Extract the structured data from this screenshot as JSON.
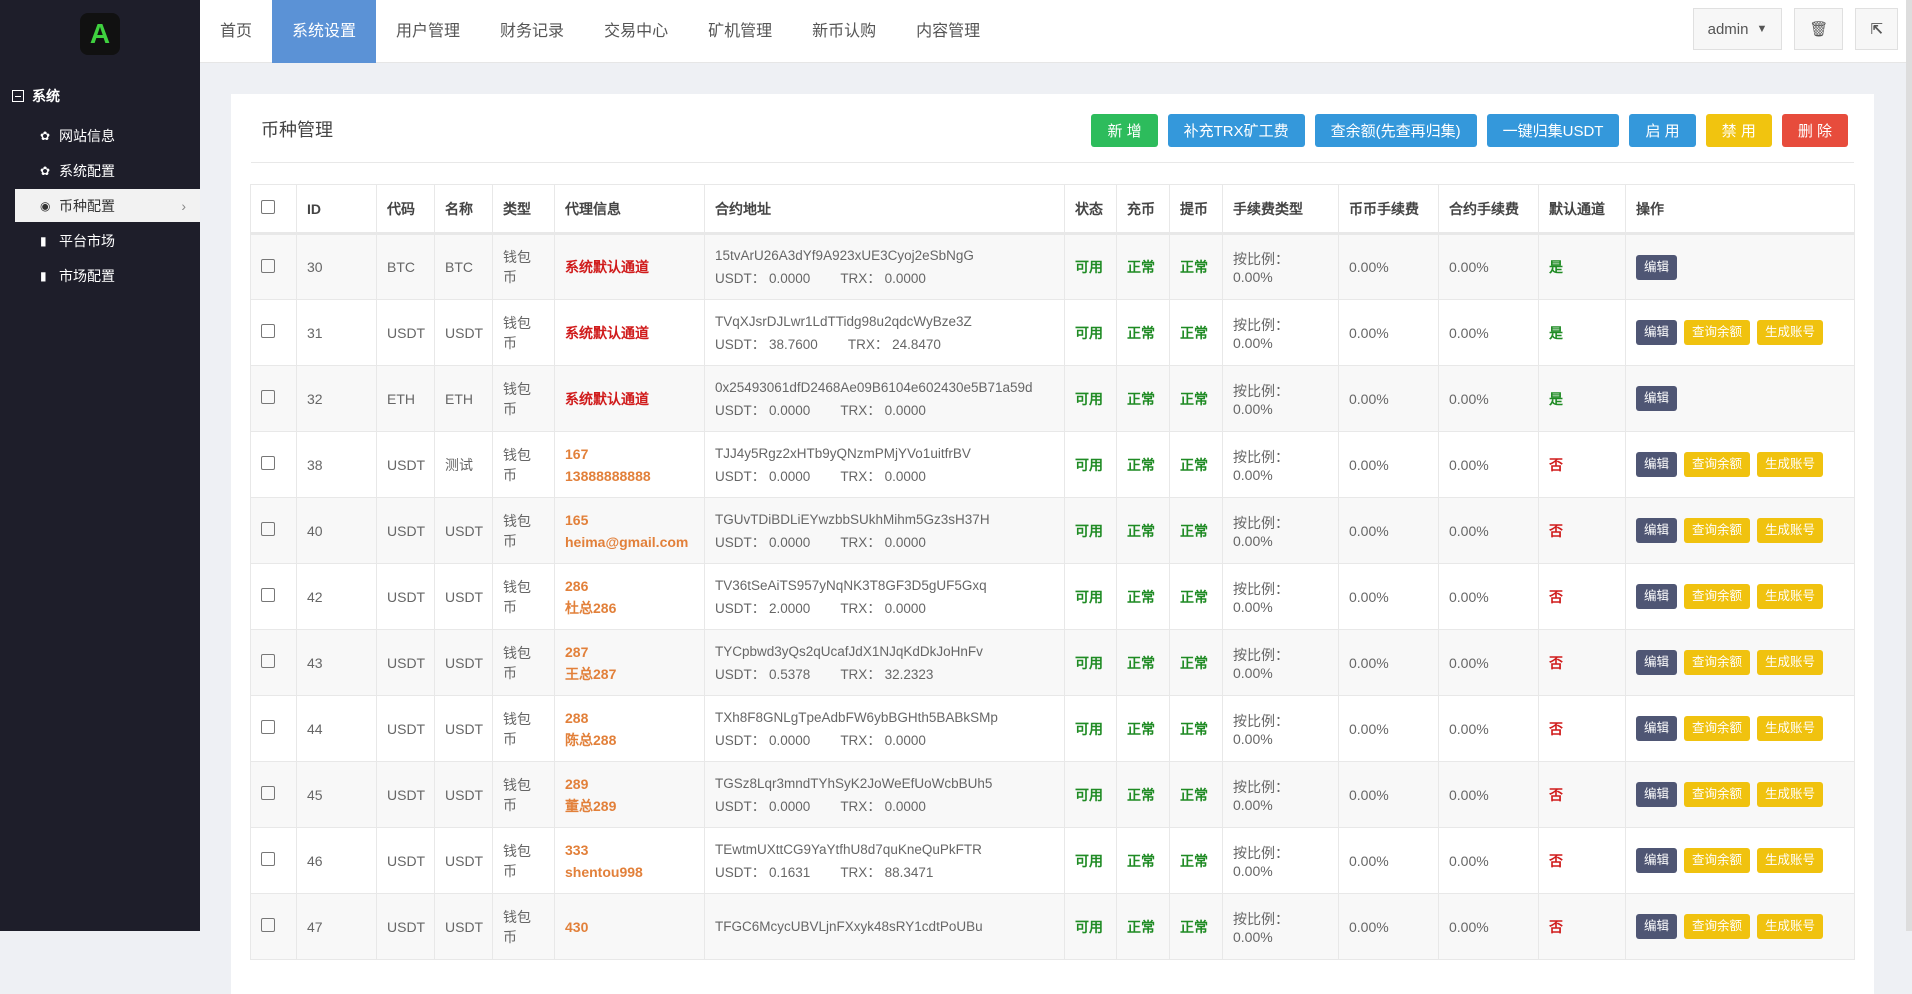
{
  "sidebar": {
    "logo": "A",
    "group": "系统",
    "items": [
      {
        "label": "网站信息",
        "icon": "gear-icon",
        "glyph": "✿"
      },
      {
        "label": "系统配置",
        "icon": "gear-icon",
        "glyph": "✿"
      },
      {
        "label": "币种配置",
        "icon": "target-icon",
        "glyph": "◉",
        "active": true
      },
      {
        "label": "平台市场",
        "icon": "bar-chart-icon",
        "glyph": "▮"
      },
      {
        "label": "市场配置",
        "icon": "bar-chart-icon",
        "glyph": "▮"
      }
    ]
  },
  "nav": {
    "tabs": [
      "首页",
      "系统设置",
      "用户管理",
      "财务记录",
      "交易中心",
      "矿机管理",
      "新币认购",
      "内容管理"
    ],
    "active": 1,
    "user": "admin"
  },
  "page": {
    "title": "币种管理",
    "actions": [
      {
        "label": "新 增",
        "color": "#2dbc5c"
      },
      {
        "label": "补充TRX矿工费",
        "color": "#3498db"
      },
      {
        "label": "查余额(先查再归集)",
        "color": "#3498db"
      },
      {
        "label": "一键归集USDT",
        "color": "#3498db"
      },
      {
        "label": "启 用",
        "color": "#3498db"
      },
      {
        "label": "禁 用",
        "color": "#f1c40f"
      },
      {
        "label": "删 除",
        "color": "#e74c3c"
      }
    ]
  },
  "table": {
    "headers": [
      "ID",
      "代码",
      "名称",
      "类型",
      "代理信息",
      "合约地址",
      "状态",
      "充币",
      "提币",
      "手续费类型",
      "币币手续费",
      "合约手续费",
      "默认通道",
      "操作"
    ],
    "edit_label": "编辑",
    "query_label": "查询余额",
    "gen_label": "生成账号",
    "usdt_label": "USDT：",
    "trx_label": "TRX：",
    "rows": [
      {
        "id": "30",
        "code": "BTC",
        "name": "BTC",
        "type": "钱包币",
        "agent": [
          "系统默认通道"
        ],
        "agent_default": true,
        "address": "15tvArU26A3dYf9A923xUE3Cyoj2eSbNgG",
        "usdt": "0.0000",
        "trx": "0.0000",
        "status": "可用",
        "deposit": "正常",
        "withdraw": "正常",
        "fee_type": "按比例：0.00%",
        "coin_fee": "0.00%",
        "contract_fee": "0.00%",
        "default": "是",
        "extra": false
      },
      {
        "id": "31",
        "code": "USDT",
        "name": "USDT",
        "type": "钱包币",
        "agent": [
          "系统默认通道"
        ],
        "agent_default": true,
        "address": "TVqXJsrDJLwr1LdTTidg98u2qdcWyBze3Z",
        "usdt": "38.7600",
        "trx": "24.8470",
        "status": "可用",
        "deposit": "正常",
        "withdraw": "正常",
        "fee_type": "按比例：0.00%",
        "coin_fee": "0.00%",
        "contract_fee": "0.00%",
        "default": "是",
        "extra": true
      },
      {
        "id": "32",
        "code": "ETH",
        "name": "ETH",
        "type": "钱包币",
        "agent": [
          "系统默认通道"
        ],
        "agent_default": true,
        "address": "0x25493061dfD2468Ae09B6104e602430e5B71a59d",
        "usdt": "0.0000",
        "trx": "0.0000",
        "status": "可用",
        "deposit": "正常",
        "withdraw": "正常",
        "fee_type": "按比例：0.00%",
        "coin_fee": "0.00%",
        "contract_fee": "0.00%",
        "default": "是",
        "extra": false
      },
      {
        "id": "38",
        "code": "USDT",
        "name": "测试",
        "type": "钱包币",
        "agent": [
          "167",
          "13888888888"
        ],
        "address": "TJJ4y5Rgz2xHTb9yQNzmPMjYVo1uitfrBV",
        "usdt": "0.0000",
        "trx": "0.0000",
        "status": "可用",
        "deposit": "正常",
        "withdraw": "正常",
        "fee_type": "按比例：0.00%",
        "coin_fee": "0.00%",
        "contract_fee": "0.00%",
        "default": "否",
        "extra": true
      },
      {
        "id": "40",
        "code": "USDT",
        "name": "USDT",
        "type": "钱包币",
        "agent": [
          "165",
          "heima@gmail.com"
        ],
        "address": "TGUvTDiBDLiEYwzbbSUkhMihm5Gz3sH37H",
        "usdt": "0.0000",
        "trx": "0.0000",
        "status": "可用",
        "deposit": "正常",
        "withdraw": "正常",
        "fee_type": "按比例：0.00%",
        "coin_fee": "0.00%",
        "contract_fee": "0.00%",
        "default": "否",
        "extra": true
      },
      {
        "id": "42",
        "code": "USDT",
        "name": "USDT",
        "type": "钱包币",
        "agent": [
          "286",
          "杜总286"
        ],
        "address": "TV36tSeAiTS957yNqNK3T8GF3D5gUF5Gxq",
        "usdt": "2.0000",
        "trx": "0.0000",
        "status": "可用",
        "deposit": "正常",
        "withdraw": "正常",
        "fee_type": "按比例：0.00%",
        "coin_fee": "0.00%",
        "contract_fee": "0.00%",
        "default": "否",
        "extra": true
      },
      {
        "id": "43",
        "code": "USDT",
        "name": "USDT",
        "type": "钱包币",
        "agent": [
          "287",
          "王总287"
        ],
        "address": "TYCpbwd3yQs2qUcafJdX1NJqKdDkJoHnFv",
        "usdt": "0.5378",
        "trx": "32.2323",
        "status": "可用",
        "deposit": "正常",
        "withdraw": "正常",
        "fee_type": "按比例：0.00%",
        "coin_fee": "0.00%",
        "contract_fee": "0.00%",
        "default": "否",
        "extra": true
      },
      {
        "id": "44",
        "code": "USDT",
        "name": "USDT",
        "type": "钱包币",
        "agent": [
          "288",
          "陈总288"
        ],
        "address": "TXh8F8GNLgTpeAdbFW6ybBGHth5BABkSMp",
        "usdt": "0.0000",
        "trx": "0.0000",
        "status": "可用",
        "deposit": "正常",
        "withdraw": "正常",
        "fee_type": "按比例：0.00%",
        "coin_fee": "0.00%",
        "contract_fee": "0.00%",
        "default": "否",
        "extra": true
      },
      {
        "id": "45",
        "code": "USDT",
        "name": "USDT",
        "type": "钱包币",
        "agent": [
          "289",
          "董总289"
        ],
        "address": "TGSz8Lqr3mndTYhSyK2JoWeEfUoWcbBUh5",
        "usdt": "0.0000",
        "trx": "0.0000",
        "status": "可用",
        "deposit": "正常",
        "withdraw": "正常",
        "fee_type": "按比例：0.00%",
        "coin_fee": "0.00%",
        "contract_fee": "0.00%",
        "default": "否",
        "extra": true
      },
      {
        "id": "46",
        "code": "USDT",
        "name": "USDT",
        "type": "钱包币",
        "agent": [
          "333",
          "shentou998"
        ],
        "address": "TEwtmUXttCG9YaYtfhU8d7quKneQuPkFTR",
        "usdt": "0.1631",
        "trx": "88.3471",
        "status": "可用",
        "deposit": "正常",
        "withdraw": "正常",
        "fee_type": "按比例：0.00%",
        "coin_fee": "0.00%",
        "contract_fee": "0.00%",
        "default": "否",
        "extra": true
      },
      {
        "id": "47",
        "code": "USDT",
        "name": "USDT",
        "type": "钱包币",
        "agent": [
          "430"
        ],
        "address": "TFGC6McycUBVLjnFXxyk48sRY1cdtPoUBu",
        "status": "可用",
        "deposit": "正常",
        "withdraw": "正常",
        "fee_type": "按比例：0.00%",
        "coin_fee": "0.00%",
        "contract_fee": "0.00%",
        "default": "否",
        "extra": true
      }
    ]
  }
}
